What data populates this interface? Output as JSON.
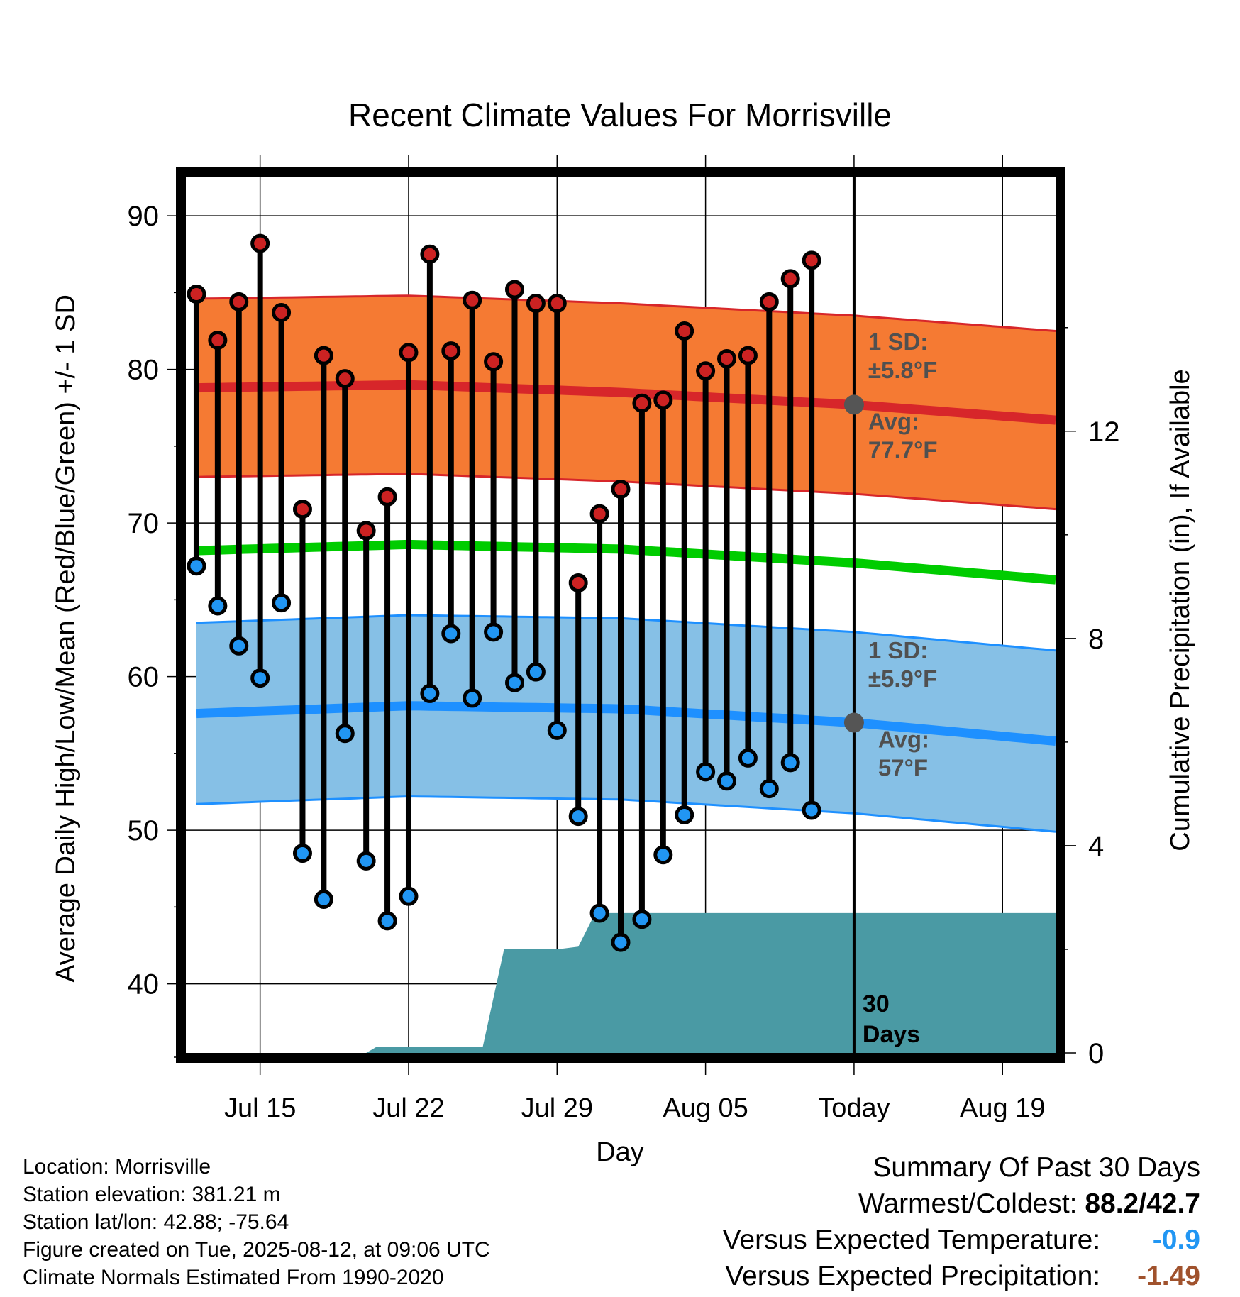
{
  "chart_data": {
    "type": "range-dot",
    "title": "Recent Climate Values For Morrisville",
    "xlabel": "Day",
    "ylabel_left": "Average Daily High/Low/Mean (Red/Blue/Green) +/- 1 SD",
    "ylabel_right": "Cumulative Precipitation (in), If Available",
    "x_ticks": [
      {
        "day": 3,
        "label": "Jul 15"
      },
      {
        "day": 10,
        "label": "Jul 22"
      },
      {
        "day": 17,
        "label": "Jul 29"
      },
      {
        "day": 24,
        "label": "Aug 05"
      },
      {
        "day": 31,
        "label": "Today"
      },
      {
        "day": 38,
        "label": "Aug 19"
      }
    ],
    "x_range": [
      -0.5,
      40.5
    ],
    "y_left_range": [
      35.5,
      92.5
    ],
    "y_left_ticks": [
      40,
      50,
      60,
      70,
      80,
      90
    ],
    "y_right_range": [
      0,
      16.9
    ],
    "y_right_ticks": [
      0,
      4,
      8,
      12
    ],
    "grid": true,
    "days": [
      0,
      1,
      2,
      3,
      4,
      5,
      6,
      7,
      8,
      9,
      10,
      11,
      12,
      13,
      14,
      15,
      16,
      17,
      18,
      19,
      20,
      21,
      22,
      23,
      24,
      25,
      26,
      27,
      28,
      29
    ],
    "highs": [
      84.9,
      81.9,
      84.4,
      88.2,
      83.7,
      70.9,
      80.9,
      79.4,
      69.5,
      71.7,
      81.1,
      87.5,
      81.2,
      84.5,
      80.5,
      85.2,
      84.3,
      84.3,
      66.1,
      70.6,
      72.2,
      77.8,
      78.0,
      82.5,
      79.9,
      80.7,
      80.9,
      84.4,
      85.9,
      87.1
    ],
    "lows": [
      67.2,
      64.6,
      62.0,
      59.9,
      64.8,
      48.5,
      45.5,
      56.3,
      48.0,
      44.1,
      45.7,
      58.9,
      62.8,
      58.6,
      62.9,
      59.6,
      60.3,
      56.5,
      50.9,
      44.6,
      42.7,
      44.2,
      48.4,
      51.0,
      53.8,
      53.2,
      54.7,
      52.7,
      54.4,
      51.3
    ],
    "normal_high": {
      "x": [
        0,
        10,
        20,
        31,
        40.5
      ],
      "mean": [
        78.8,
        79.0,
        78.5,
        77.7,
        76.7
      ],
      "sd": 5.8
    },
    "normal_low": {
      "x": [
        0,
        10,
        20,
        31,
        40.5
      ],
      "mean": [
        57.6,
        58.1,
        57.9,
        57.0,
        55.8
      ],
      "sd": 5.9
    },
    "normal_mean": {
      "x": [
        0,
        10,
        20,
        31,
        40.5
      ],
      "values": [
        68.2,
        68.6,
        68.3,
        67.4,
        66.3
      ]
    },
    "precip_cumulative": {
      "x": [
        0,
        8,
        8.5,
        13.5,
        14.5,
        17,
        18,
        18.8,
        40.5
      ],
      "y": [
        0.0,
        0.0,
        0.12,
        0.12,
        2.0,
        2.0,
        2.05,
        2.7,
        2.7
      ]
    },
    "today_day": 31,
    "annotations": {
      "high_sd": "1 SD:",
      "high_sd_val": "±5.8°F",
      "high_avg": "Avg:",
      "high_avg_val": "77.7°F",
      "low_sd": "1 SD:",
      "low_sd_val": "±5.9°F",
      "low_avg": "Avg:",
      "low_avg_val": "57°F",
      "window_num": "30",
      "window_unit": "Days"
    },
    "colors": {
      "high_band": "#f57a33",
      "high_line": "#d7262a",
      "low_band": "#86c0e6",
      "low_line": "#1e90ff",
      "mean_line": "#00cc00",
      "precip": "#4a9aa4",
      "high_dot": "#cc2222",
      "low_dot": "#2196f3",
      "annotation": "#505050",
      "anomaly_temp": "#2196f3",
      "anomaly_precip": "#a0522d"
    }
  },
  "footer": {
    "location": "Location: Morrisville",
    "elevation": "Station elevation: 381.21 m",
    "latlon": "Station lat/lon: 42.88; -75.64",
    "created": "Figure created on Tue, 2025-08-12, at 09:06 UTC",
    "normals": "Climate Normals Estimated From 1990-2020"
  },
  "summary": {
    "heading": "Summary Of Past 30 Days",
    "warmest_label": "Warmest/Coldest:",
    "warmest_value": "88.2/42.7",
    "temp_label": "Versus Expected Temperature:",
    "temp_value": "-0.9",
    "precip_label": "Versus Expected Precipitation:",
    "precip_value": "-1.49"
  }
}
